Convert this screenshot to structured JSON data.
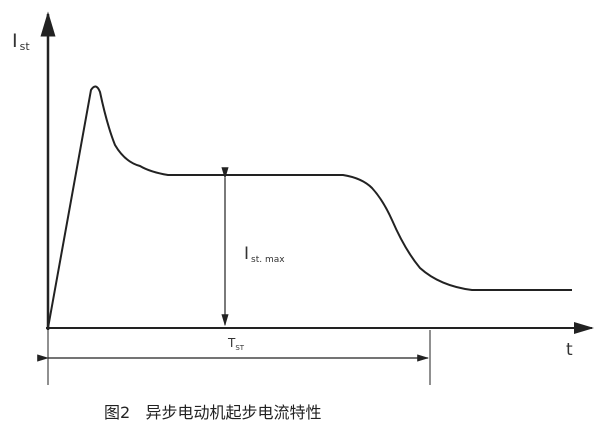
{
  "diagram": {
    "y_axis_label": {
      "main": "I",
      "sub": "st"
    },
    "x_axis_label": "t",
    "peak_height_label": {
      "main": "I",
      "sub": "st. max"
    },
    "duration_label": {
      "main": "T",
      "sub": "ST"
    },
    "caption": "图2   异步电动机起步电流特性",
    "line_color": "#222222"
  }
}
